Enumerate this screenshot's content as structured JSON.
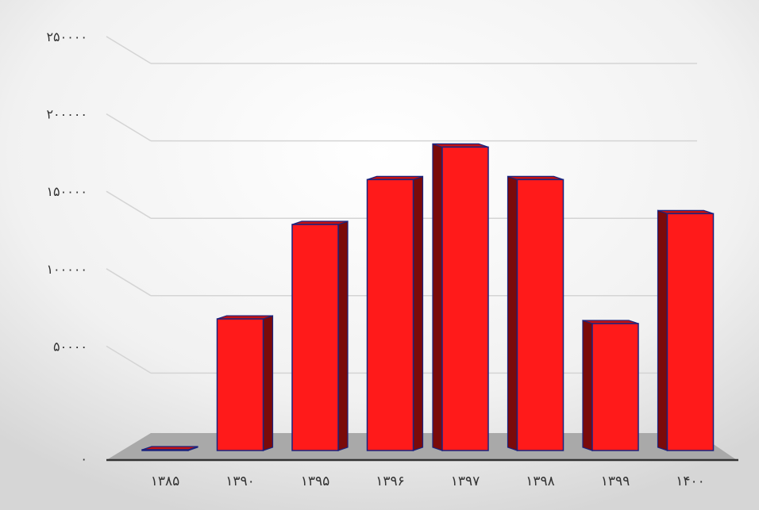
{
  "chart_data": {
    "type": "bar",
    "title": "",
    "xlabel": "",
    "ylabel": "",
    "categories": [
      "۱۳۸۵",
      "۱۳۹۰",
      "۱۳۹۵",
      "۱۳۹۶",
      "۱۳۹۷",
      "۱۳۹۸",
      "۱۳۹۹",
      "۱۴۰۰"
    ],
    "values": [
      500,
      85000,
      146000,
      175000,
      196000,
      175000,
      82000,
      153000
    ],
    "ylim": [
      0,
      250000
    ],
    "yticks": [
      0,
      50000,
      100000,
      150000,
      200000,
      250000
    ],
    "ytick_labels": [
      "۰",
      "۵۰۰۰۰",
      "۱۰۰۰۰۰",
      "۱۵۰۰۰۰",
      "۲۰۰۰۰۰",
      "۲۵۰۰۰۰"
    ],
    "grid": true,
    "legend": "none",
    "style": "3d-column",
    "colors": {
      "bar_front": "#ff1a1a",
      "bar_side": "#7a0a0a",
      "bar_top": "#c41212",
      "bar_outline": "#1a237e",
      "floor": "#a9a9a9",
      "gridline": "#d4d4d4",
      "axis_line": "#333333"
    }
  }
}
